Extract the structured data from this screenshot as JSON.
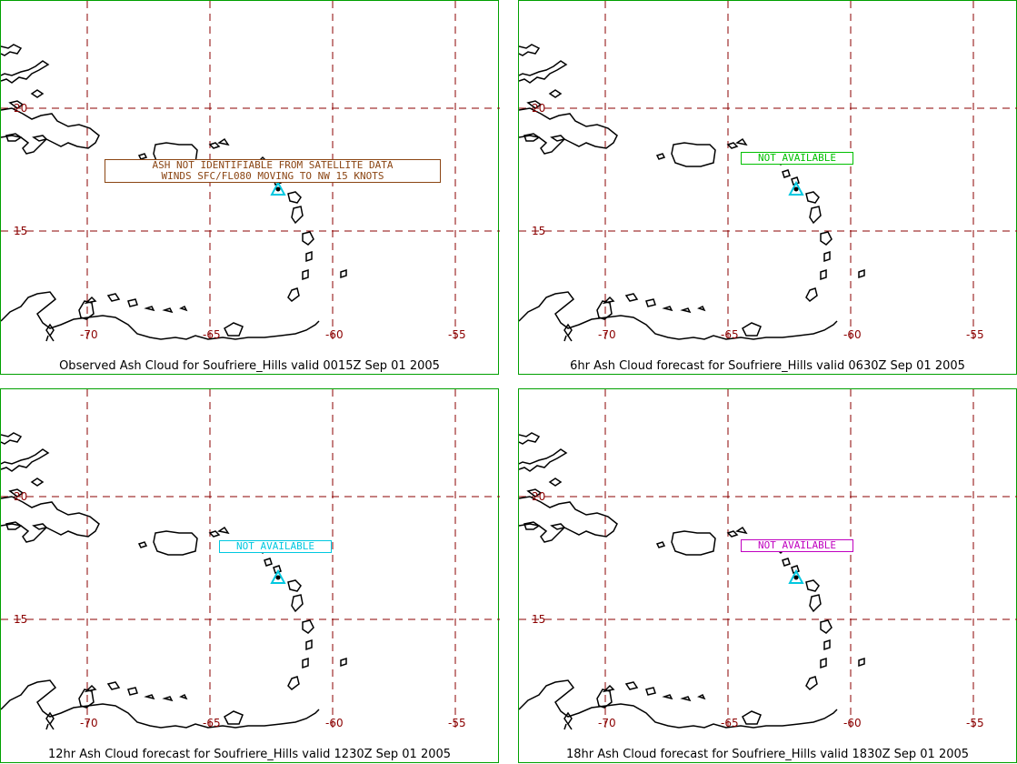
{
  "colors": {
    "frame": "#00a000",
    "grid": "#8b0000",
    "coast": "#000000",
    "volcano": "#00c8e0"
  },
  "axes": {
    "lat_labels": [
      "20",
      "15"
    ],
    "lon_labels": [
      "-70",
      "-65",
      "-60",
      "-55"
    ]
  },
  "panels": [
    {
      "caption": "Observed Ash Cloud for Soufriere_Hills valid 0015Z Sep 01 2005",
      "note_lines": [
        "ASH NOT IDENTIFIABLE FROM SATELLITE DATA",
        "WINDS SFC/FL080 MOVING TO NW 15 KNOTS"
      ],
      "note_color": "#8b4513"
    },
    {
      "caption": "6hr Ash Cloud forecast for Soufriere_Hills valid 0630Z Sep 01 2005",
      "note_lines": [
        "NOT AVAILABLE"
      ],
      "note_color": "#00c000"
    },
    {
      "caption": "12hr Ash Cloud forecast for Soufriere_Hills valid 1230Z Sep 01 2005",
      "note_lines": [
        "NOT AVAILABLE"
      ],
      "note_color": "#00c8e0"
    },
    {
      "caption": "18hr Ash Cloud forecast for Soufriere_Hills valid 1830Z Sep 01 2005",
      "note_lines": [
        "NOT AVAILABLE"
      ],
      "note_color": "#c000c0"
    }
  ]
}
